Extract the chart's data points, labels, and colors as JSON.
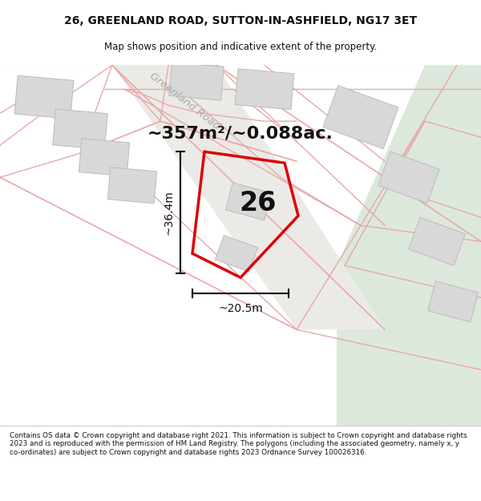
{
  "title_line1": "26, GREENLAND ROAD, SUTTON-IN-ASHFIELD, NG17 3ET",
  "title_line2": "Map shows position and indicative extent of the property.",
  "area_text": "~357m²/~0.088ac.",
  "property_number": "26",
  "dim_width": "~20.5m",
  "dim_height": "~36.4m",
  "road_label": "Greenland Road",
  "copyright_text": "Contains OS data © Crown copyright and database right 2021. This information is subject to Crown copyright and database rights 2023 and is reproduced with the permission of HM Land Registry. The polygons (including the associated geometry, namely x, y co-ordinates) are subject to Crown copyright and database rights 2023 Ordnance Survey 100026316.",
  "map_bg": "#f5f4f2",
  "green_area_color": "#dde8dd",
  "property_edge": "#dd0000",
  "pink_color": "#e8a8a8",
  "gray_building": "#d8d8d8",
  "gray_building_edge": "#bbbbbb",
  "white_bg": "#ffffff",
  "road_area_color": "#f0eeeb",
  "title_fontsize": 10,
  "subtitle_fontsize": 8.5,
  "area_fontsize": 16,
  "number_fontsize": 24,
  "dim_fontsize": 10
}
